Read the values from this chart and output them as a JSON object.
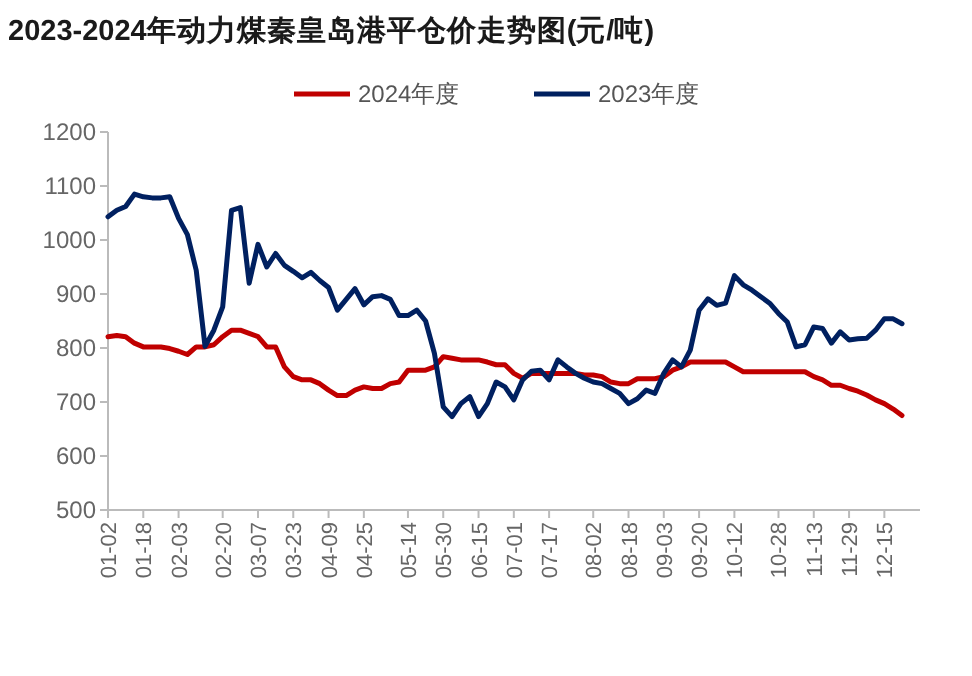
{
  "chart_data": {
    "type": "line",
    "title": "2023-2024年动力煤秦皇岛港平仓价走势图(元/吨)",
    "categories": [
      "01-02",
      null,
      null,
      null,
      "01-18",
      null,
      null,
      null,
      "02-03",
      null,
      null,
      null,
      null,
      "02-20",
      null,
      null,
      null,
      "03-07",
      null,
      null,
      null,
      "03-23",
      null,
      null,
      null,
      "04-09",
      null,
      null,
      null,
      "04-25",
      null,
      null,
      null,
      null,
      "05-14",
      null,
      null,
      null,
      "05-30",
      null,
      null,
      null,
      "06-15",
      null,
      null,
      null,
      "07-01",
      null,
      null,
      null,
      "07-17",
      null,
      null,
      null,
      null,
      "08-02",
      null,
      null,
      null,
      "08-18",
      null,
      null,
      null,
      "09-03",
      null,
      null,
      null,
      "09-20",
      null,
      null,
      null,
      "10-12",
      null,
      null,
      null,
      null,
      "10-28",
      null,
      null,
      null,
      "11-13",
      null,
      null,
      null,
      "11-29",
      null,
      null,
      null,
      "12-15",
      null,
      null
    ],
    "series": [
      {
        "name": "2024年度",
        "color": "#c00000",
        "values": [
          821,
          823,
          821,
          809,
          802,
          802,
          802,
          799,
          794,
          788,
          802,
          802,
          806,
          821,
          833,
          833,
          827,
          821,
          802,
          802,
          765,
          747,
          741,
          741,
          734,
          722,
          712,
          712,
          722,
          728,
          725,
          725,
          734,
          737,
          759,
          759,
          759,
          765,
          784,
          781,
          778,
          778,
          778,
          774,
          769,
          769,
          753,
          744,
          753,
          753,
          753,
          753,
          753,
          753,
          750,
          750,
          747,
          737,
          734,
          734,
          743,
          743,
          743,
          747,
          759,
          765,
          774,
          774,
          774,
          774,
          774,
          765,
          756,
          756,
          756,
          756,
          756,
          756,
          756,
          756,
          747,
          741,
          731,
          731,
          725,
          720,
          713,
          704,
          697,
          687,
          675
        ]
      },
      {
        "name": "2023年度",
        "color": "#002060",
        "values": [
          1043,
          1055,
          1062,
          1085,
          1080,
          1078,
          1078,
          1080,
          1040,
          1010,
          944,
          803,
          833,
          876,
          1055,
          1060,
          920,
          992,
          950,
          975,
          953,
          942,
          930,
          940,
          925,
          912,
          870,
          890,
          910,
          880,
          895,
          897,
          890,
          860,
          860,
          870,
          850,
          790,
          691,
          673,
          697,
          710,
          673,
          697,
          737,
          728,
          704,
          741,
          757,
          759,
          741,
          778,
          765,
          753,
          744,
          737,
          734,
          725,
          716,
          697,
          706,
          722,
          716,
          753,
          778,
          765,
          796,
          870,
          891,
          879,
          883,
          934,
          917,
          907,
          895,
          883,
          864,
          848,
          802,
          806,
          839,
          836,
          809,
          830,
          815,
          817,
          818,
          833,
          854,
          854,
          845
        ]
      }
    ],
    "ylim": [
      500,
      1200
    ],
    "yticks": [
      500,
      600,
      700,
      800,
      900,
      1000,
      1100,
      1200
    ],
    "legend": "top"
  }
}
